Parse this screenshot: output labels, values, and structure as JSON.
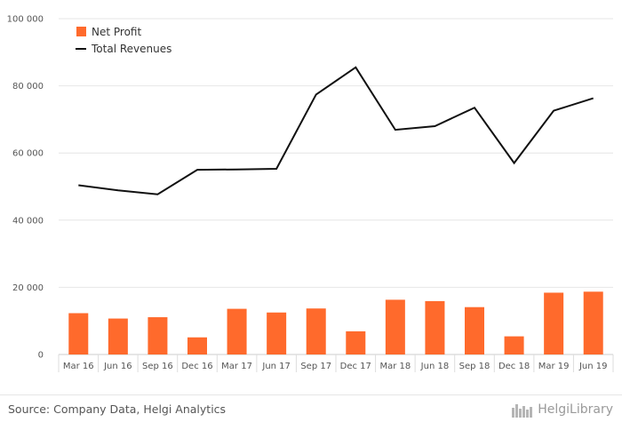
{
  "chart_data": {
    "type": "bar",
    "categories": [
      "Mar 16",
      "Jun 16",
      "Sep 16",
      "Dec 16",
      "Mar 17",
      "Jun 17",
      "Sep 17",
      "Dec 17",
      "Mar 18",
      "Jun 18",
      "Sep 18",
      "Dec 18",
      "Mar 19",
      "Jun 19"
    ],
    "series": [
      {
        "name": "Net Profit",
        "type": "bar",
        "color": "#ff6a2c",
        "values": [
          12300,
          10700,
          11100,
          5100,
          13600,
          12500,
          13700,
          6900,
          16300,
          15900,
          14100,
          5400,
          18400,
          18700
        ]
      },
      {
        "name": "Total Revenues",
        "type": "line",
        "color": "#111111",
        "values": [
          50400,
          48900,
          47700,
          55000,
          55100,
          55300,
          77400,
          85500,
          66900,
          68000,
          73500,
          57000,
          72600,
          76300
        ]
      }
    ],
    "ylim": [
      0,
      100000
    ],
    "yticks": [
      0,
      20000,
      40000,
      60000,
      80000,
      100000
    ],
    "ytick_labels": [
      "0",
      "20 000",
      "40 000",
      "60 000",
      "80 000",
      "100 000"
    ],
    "grid": true,
    "legend_position": "top-left"
  },
  "footer": {
    "source": "Source: Company Data, Helgi Analytics",
    "brand": "HelgiLibrary"
  }
}
